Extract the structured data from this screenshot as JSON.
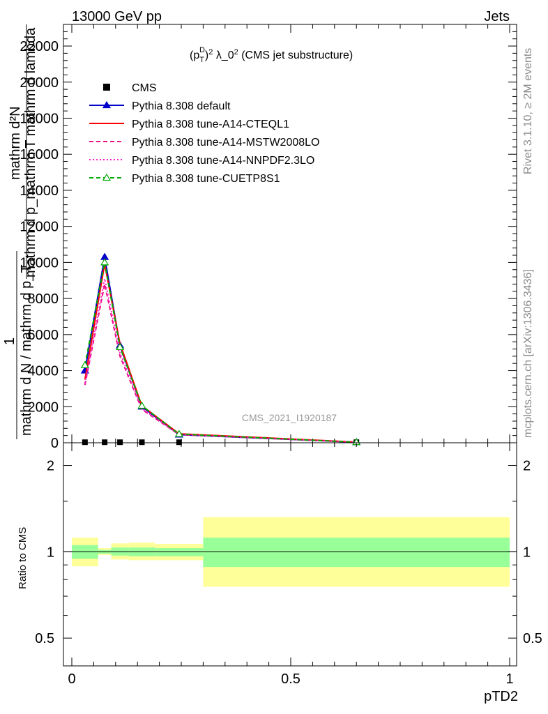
{
  "header": {
    "left": "13000 GeV pp",
    "right": "Jets"
  },
  "side_text": {
    "rivet": "Rivet 3.1.10, ≥ 2M events",
    "mcplots": "mcplots.cern.ch [arXiv:1306.3436]"
  },
  "chart_data": [
    {
      "type": "line",
      "title_base": "(p",
      "title_sub": "T",
      "title_sup_d": "D",
      "title_sup_2": "2",
      "title_rest": " λ_0",
      "title_sup_end": "2",
      "title_tail": " (CMS jet substructure)",
      "ylabel_numer": "mathrm d²N",
      "ylabel_denom": "mathrm d p_mathrm T mathrm d lambda",
      "ylabel_one": "1",
      "ylabel_frac": "mathrm d N / mathrm d p_T",
      "watermark": "CMS_2021_I1920187",
      "xlim": [
        0,
        1
      ],
      "ylim": [
        0,
        23200
      ],
      "yticks": [
        0,
        2000,
        4000,
        6000,
        8000,
        10000,
        12000,
        14000,
        16000,
        18000,
        20000,
        22000
      ],
      "ytick_labels": [
        "0",
        "2000",
        "4000",
        "6000",
        "8000",
        "10000",
        "12000",
        "14000",
        "16000",
        "18000",
        "20000",
        "22000"
      ],
      "legend_position": "top-left",
      "series": [
        {
          "name": "CMS",
          "color": "#000000",
          "style": "marker",
          "x": [
            0.03,
            0.075,
            0.11,
            0.16,
            0.245,
            0.65
          ],
          "y": [
            30,
            30,
            30,
            30,
            30,
            30
          ]
        },
        {
          "name": "Pythia 8.308 default",
          "color": "#0000cc",
          "style": "solid",
          "marker": "filled-triangle",
          "x": [
            0.03,
            0.075,
            0.11,
            0.16,
            0.245,
            0.65
          ],
          "y": [
            4000,
            10300,
            5400,
            2000,
            450,
            30
          ]
        },
        {
          "name": "Pythia 8.308 tune-A14-CTEQL1",
          "color": "#ff0000",
          "style": "solid",
          "x": [
            0.03,
            0.075,
            0.11,
            0.16,
            0.245,
            0.65
          ],
          "y": [
            3500,
            9900,
            5500,
            2050,
            500,
            40
          ]
        },
        {
          "name": "Pythia 8.308 tune-A14-MSTW2008LO",
          "color": "#ee1188",
          "style": "dashed",
          "x": [
            0.03,
            0.075,
            0.11,
            0.16,
            0.245,
            0.65
          ],
          "y": [
            3200,
            8800,
            4800,
            1850,
            450,
            30
          ]
        },
        {
          "name": "Pythia 8.308 tune-A14-NNPDF2.3LO",
          "color": "#ff22cc",
          "style": "dotted",
          "x": [
            0.03,
            0.075,
            0.11,
            0.16,
            0.245,
            0.65
          ],
          "y": [
            3300,
            9100,
            5000,
            1900,
            460,
            30
          ]
        },
        {
          "name": "Pythia 8.308 tune-CUETP8S1",
          "color": "#00aa00",
          "style": "dashed",
          "marker": "open-triangle",
          "x": [
            0.03,
            0.075,
            0.11,
            0.16,
            0.245,
            0.65
          ],
          "y": [
            4300,
            10000,
            5300,
            2050,
            480,
            30
          ]
        }
      ]
    },
    {
      "type": "area",
      "ylabel": "Ratio to CMS",
      "xlabel": "pTD2",
      "xlim": [
        0,
        1
      ],
      "ylim": [
        0.4,
        2.4
      ],
      "log_y": true,
      "xticks": [
        0,
        0.5,
        1
      ],
      "xtick_labels": [
        "0",
        "0.5",
        "1"
      ],
      "yticks": [
        0.5,
        1,
        2
      ],
      "ytick_labels": [
        "0.5",
        "1",
        "2"
      ],
      "reference_line": 1,
      "bands": [
        {
          "x0": 0.0,
          "x1": 0.06,
          "stat": [
            0.945,
            1.055
          ],
          "total": [
            0.89,
            1.12
          ]
        },
        {
          "x0": 0.06,
          "x1": 0.09,
          "stat": [
            0.985,
            1.015
          ],
          "total": [
            0.975,
            1.03
          ]
        },
        {
          "x0": 0.09,
          "x1": 0.13,
          "stat": [
            0.97,
            1.035
          ],
          "total": [
            0.94,
            1.07
          ]
        },
        {
          "x0": 0.13,
          "x1": 0.19,
          "stat": [
            0.965,
            1.035
          ],
          "total": [
            0.935,
            1.075
          ]
        },
        {
          "x0": 0.19,
          "x1": 0.3,
          "stat": [
            0.965,
            1.03
          ],
          "total": [
            0.935,
            1.065
          ]
        },
        {
          "x0": 0.3,
          "x1": 1.0,
          "stat": [
            0.885,
            1.12
          ],
          "total": [
            0.755,
            1.32
          ]
        }
      ],
      "colors": {
        "stat": "#99ff99",
        "total": "#ffff99"
      }
    }
  ]
}
